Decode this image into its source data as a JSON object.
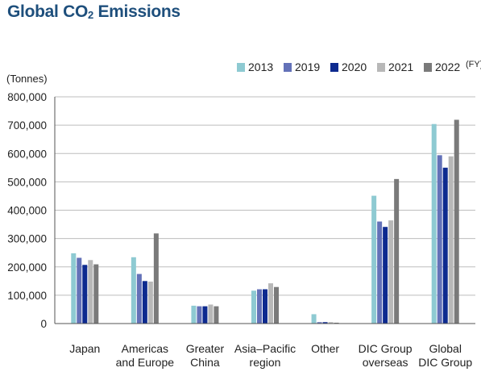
{
  "header": {
    "title_main": "Global CO",
    "title_sub": "2",
    "title_tail": " Emissions"
  },
  "chart_data": {
    "type": "bar",
    "title": "Global CO2 Emissions",
    "ylabel": "(Tonnes)",
    "unit_suffix": "(FY)",
    "ylim": [
      0,
      800000
    ],
    "yticks": [
      "0",
      "100,000",
      "200,000",
      "300,000",
      "400,000",
      "500,000",
      "600,000",
      "700,000",
      "800,000"
    ],
    "grid": true,
    "legend_position": "top-right",
    "categories": [
      [
        "Japan"
      ],
      [
        "Americas",
        "and Europe"
      ],
      [
        "Greater",
        "China"
      ],
      [
        "Asia–Pacific",
        "region"
      ],
      [
        "Other"
      ],
      [
        "DIC Group",
        "overseas"
      ],
      [
        "Global",
        "DIC Group"
      ]
    ],
    "series": [
      {
        "name": "2013",
        "color": "#8ecad2",
        "values": [
          248000,
          234000,
          63000,
          116000,
          33000,
          451000,
          704000
        ]
      },
      {
        "name": "2019",
        "color": "#6371b8",
        "values": [
          232000,
          175000,
          61000,
          121000,
          5000,
          360000,
          594000
        ]
      },
      {
        "name": "2020",
        "color": "#0d2a8f",
        "values": [
          207000,
          150000,
          61000,
          121000,
          5000,
          341000,
          550000
        ]
      },
      {
        "name": "2021",
        "color": "#b8b8b8",
        "values": [
          224000,
          148000,
          67000,
          142000,
          5000,
          364000,
          590000
        ]
      },
      {
        "name": "2022",
        "color": "#7a7a7a",
        "values": [
          209000,
          318000,
          61000,
          129000,
          3000,
          510000,
          719000
        ]
      }
    ]
  }
}
